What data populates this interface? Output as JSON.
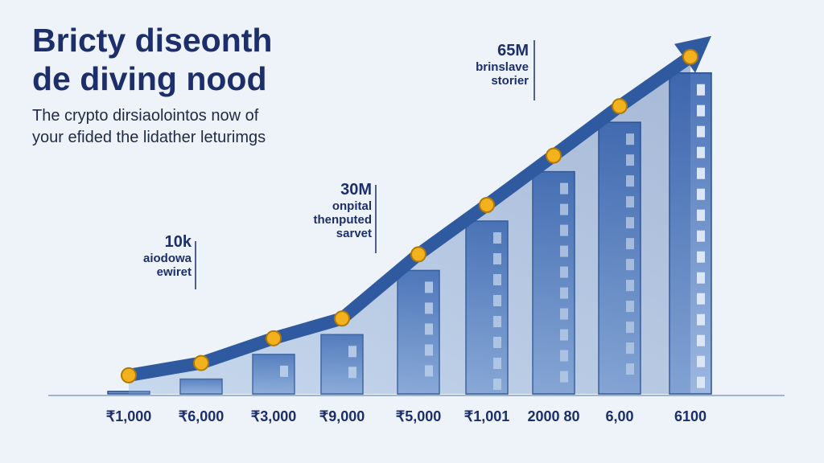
{
  "header": {
    "title_line1": "Bricty diseonth",
    "title_line2": "de diving nood",
    "subtitle_line1": "The crypto dirsiaolointos now of",
    "subtitle_line2": "your efided the lidather leturimgs"
  },
  "annotations": [
    {
      "value": "10k",
      "label_line1": "aiodowa",
      "label_line2": "ewiret"
    },
    {
      "value": "30M",
      "label_line1": "onpital",
      "label_line2": "thenputed",
      "label_line3": "sarvet"
    },
    {
      "value": "65M",
      "label_line1": "brinslave",
      "label_line2": "storier"
    }
  ],
  "colors": {
    "title": "#1d2f6b",
    "arrow": "#2f5aa0",
    "building": "#5f86c4",
    "coin": "#f3b21d"
  },
  "chart_data": {
    "type": "area",
    "title": "Bricty diseonth de diving nood",
    "categories": [
      "₹1,000",
      "₹6,000",
      "₹3,000",
      "₹9,000",
      "₹5,000",
      "₹1,001",
      "2000 80",
      "6,00",
      "6100"
    ],
    "series": [
      {
        "values": [
          0.5,
          3,
          8,
          12,
          25,
          35,
          45,
          55,
          65
        ]
      }
    ],
    "annotations": [
      "10k",
      "30M",
      "65M"
    ],
    "ylim": [
      0,
      70
    ]
  }
}
